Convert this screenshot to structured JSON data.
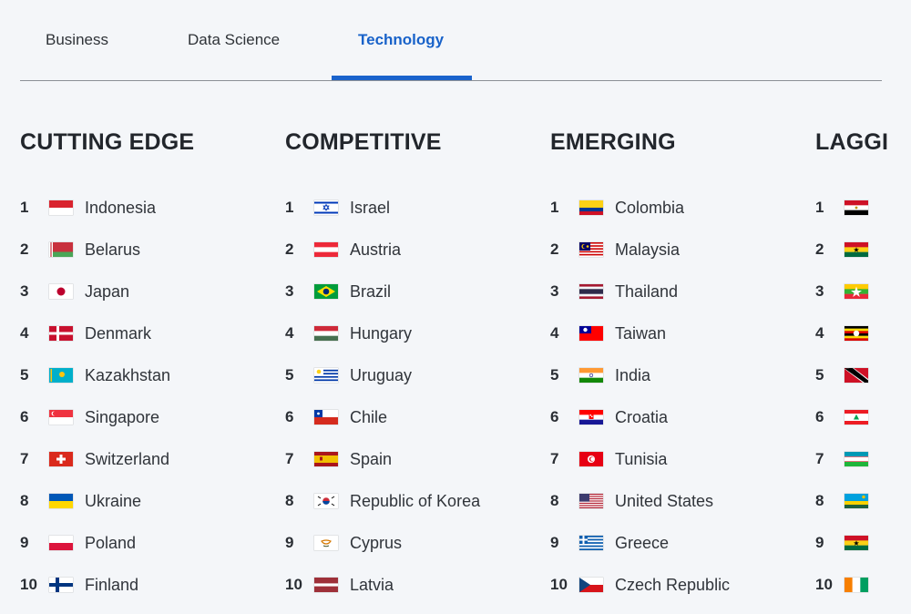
{
  "tabs": [
    {
      "label": "Business",
      "active": false
    },
    {
      "label": "Data Science",
      "active": false
    },
    {
      "label": "Technology",
      "active": true
    }
  ],
  "accent_color": "#1a63cc",
  "columns": [
    {
      "title": "CUTTING EDGE",
      "items": [
        {
          "rank": "1",
          "country": "Indonesia",
          "flag": "indonesia"
        },
        {
          "rank": "2",
          "country": "Belarus",
          "flag": "belarus"
        },
        {
          "rank": "3",
          "country": "Japan",
          "flag": "japan"
        },
        {
          "rank": "4",
          "country": "Denmark",
          "flag": "denmark"
        },
        {
          "rank": "5",
          "country": "Kazakhstan",
          "flag": "kazakhstan"
        },
        {
          "rank": "6",
          "country": "Singapore",
          "flag": "singapore"
        },
        {
          "rank": "7",
          "country": "Switzerland",
          "flag": "switzerland"
        },
        {
          "rank": "8",
          "country": "Ukraine",
          "flag": "ukraine"
        },
        {
          "rank": "9",
          "country": "Poland",
          "flag": "poland"
        },
        {
          "rank": "10",
          "country": "Finland",
          "flag": "finland"
        }
      ]
    },
    {
      "title": "COMPETITIVE",
      "items": [
        {
          "rank": "1",
          "country": "Israel",
          "flag": "israel"
        },
        {
          "rank": "2",
          "country": "Austria",
          "flag": "austria"
        },
        {
          "rank": "3",
          "country": "Brazil",
          "flag": "brazil"
        },
        {
          "rank": "4",
          "country": "Hungary",
          "flag": "hungary"
        },
        {
          "rank": "5",
          "country": "Uruguay",
          "flag": "uruguay"
        },
        {
          "rank": "6",
          "country": "Chile",
          "flag": "chile"
        },
        {
          "rank": "7",
          "country": "Spain",
          "flag": "spain"
        },
        {
          "rank": "8",
          "country": "Republic of Korea",
          "flag": "korea"
        },
        {
          "rank": "9",
          "country": "Cyprus",
          "flag": "cyprus"
        },
        {
          "rank": "10",
          "country": "Latvia",
          "flag": "latvia"
        }
      ]
    },
    {
      "title": "EMERGING",
      "items": [
        {
          "rank": "1",
          "country": "Colombia",
          "flag": "colombia"
        },
        {
          "rank": "2",
          "country": "Malaysia",
          "flag": "malaysia"
        },
        {
          "rank": "3",
          "country": "Thailand",
          "flag": "thailand"
        },
        {
          "rank": "4",
          "country": "Taiwan",
          "flag": "taiwan"
        },
        {
          "rank": "5",
          "country": "India",
          "flag": "india"
        },
        {
          "rank": "6",
          "country": "Croatia",
          "flag": "croatia"
        },
        {
          "rank": "7",
          "country": "Tunisia",
          "flag": "tunisia"
        },
        {
          "rank": "8",
          "country": "United States",
          "flag": "usa"
        },
        {
          "rank": "9",
          "country": "Greece",
          "flag": "greece"
        },
        {
          "rank": "10",
          "country": "Czech Republic",
          "flag": "czech"
        }
      ]
    },
    {
      "title": "LAGGI",
      "items": [
        {
          "rank": "1",
          "country": "",
          "flag": "egypt"
        },
        {
          "rank": "2",
          "country": "",
          "flag": "ghana"
        },
        {
          "rank": "3",
          "country": "",
          "flag": "myanmar"
        },
        {
          "rank": "4",
          "country": "",
          "flag": "uganda"
        },
        {
          "rank": "5",
          "country": "",
          "flag": "trinidad"
        },
        {
          "rank": "6",
          "country": "",
          "flag": "lebanon"
        },
        {
          "rank": "7",
          "country": "",
          "flag": "uzbekistan"
        },
        {
          "rank": "8",
          "country": "",
          "flag": "rwanda"
        },
        {
          "rank": "9",
          "country": "",
          "flag": "ghana"
        },
        {
          "rank": "10",
          "country": "",
          "flag": "ivorycoast"
        }
      ]
    }
  ]
}
